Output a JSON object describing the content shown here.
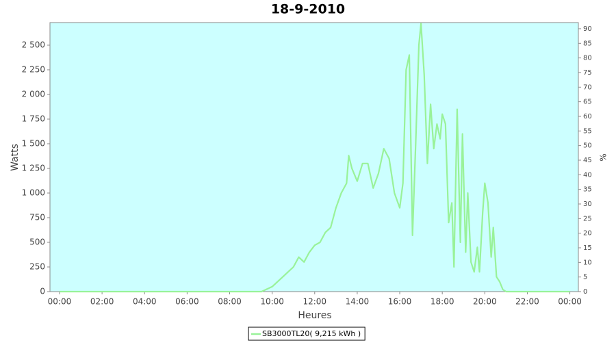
{
  "chart_data": {
    "type": "line",
    "title": "18-9-2010",
    "x_label": "Heures",
    "y_label": "Watts",
    "y2_label": "%",
    "x": [
      0,
      9.5,
      10,
      10.5,
      11,
      11.25,
      11.5,
      11.75,
      12,
      12.25,
      12.5,
      12.75,
      13,
      13.25,
      13.5,
      13.6,
      13.75,
      14,
      14.25,
      14.5,
      14.75,
      15,
      15.25,
      15.5,
      15.75,
      16,
      16.15,
      16.3,
      16.45,
      16.6,
      16.75,
      16.9,
      17,
      17.15,
      17.3,
      17.45,
      17.6,
      17.75,
      17.9,
      18,
      18.15,
      18.3,
      18.45,
      18.55,
      18.7,
      18.85,
      18.95,
      19.1,
      19.2,
      19.35,
      19.5,
      19.65,
      19.75,
      19.9,
      20,
      20.15,
      20.3,
      20.4,
      20.55,
      20.7,
      20.85,
      21,
      24
    ],
    "series": [
      {
        "name": "SB3000TL20( 9,215 kWh )",
        "color": "#99f299",
        "values": [
          0,
          0,
          50,
          150,
          250,
          350,
          300,
          400,
          470,
          500,
          600,
          650,
          850,
          1000,
          1100,
          1380,
          1250,
          1120,
          1300,
          1300,
          1050,
          1200,
          1450,
          1350,
          1000,
          850,
          1100,
          2250,
          2400,
          570,
          1500,
          2500,
          2720,
          2200,
          1300,
          1900,
          1450,
          1700,
          1550,
          1800,
          1700,
          700,
          900,
          250,
          1850,
          500,
          1600,
          400,
          1000,
          300,
          200,
          450,
          200,
          800,
          1100,
          900,
          350,
          650,
          150,
          100,
          20,
          0,
          0
        ]
      }
    ],
    "xlim": [
      -0.45,
      24.4
    ],
    "xticks": [
      {
        "value": 0,
        "label": "00:00"
      },
      {
        "value": 2,
        "label": "02:00"
      },
      {
        "value": 4,
        "label": "04:00"
      },
      {
        "value": 6,
        "label": "06:00"
      },
      {
        "value": 8,
        "label": "08:00"
      },
      {
        "value": 10,
        "label": "10:00"
      },
      {
        "value": 12,
        "label": "12:00"
      },
      {
        "value": 14,
        "label": "14:00"
      },
      {
        "value": 16,
        "label": "16:00"
      },
      {
        "value": 18,
        "label": "18:00"
      },
      {
        "value": 20,
        "label": "20:00"
      },
      {
        "value": 22,
        "label": "22:00"
      },
      {
        "value": 24,
        "label": "00:00"
      }
    ],
    "ylim": [
      0,
      2729
    ],
    "yticks": [
      0,
      250,
      500,
      750,
      {
        "value": 1000,
        "label": "1 000"
      },
      {
        "value": 1250,
        "label": "1 250"
      },
      {
        "value": 1500,
        "label": "1 500"
      },
      {
        "value": 1750,
        "label": "1 750"
      },
      {
        "value": 2000,
        "label": "2 000"
      },
      {
        "value": 2250,
        "label": "2 250"
      },
      {
        "value": 2500,
        "label": "2 500"
      }
    ],
    "y2lim": [
      0,
      92.1
    ],
    "y2ticks": [
      0,
      5,
      10,
      15,
      20,
      25,
      30,
      35,
      40,
      45,
      50,
      55,
      60,
      65,
      70,
      75,
      80,
      85,
      90
    ],
    "grid": false,
    "legend": "bottom",
    "plot_background": "#ccffff"
  }
}
